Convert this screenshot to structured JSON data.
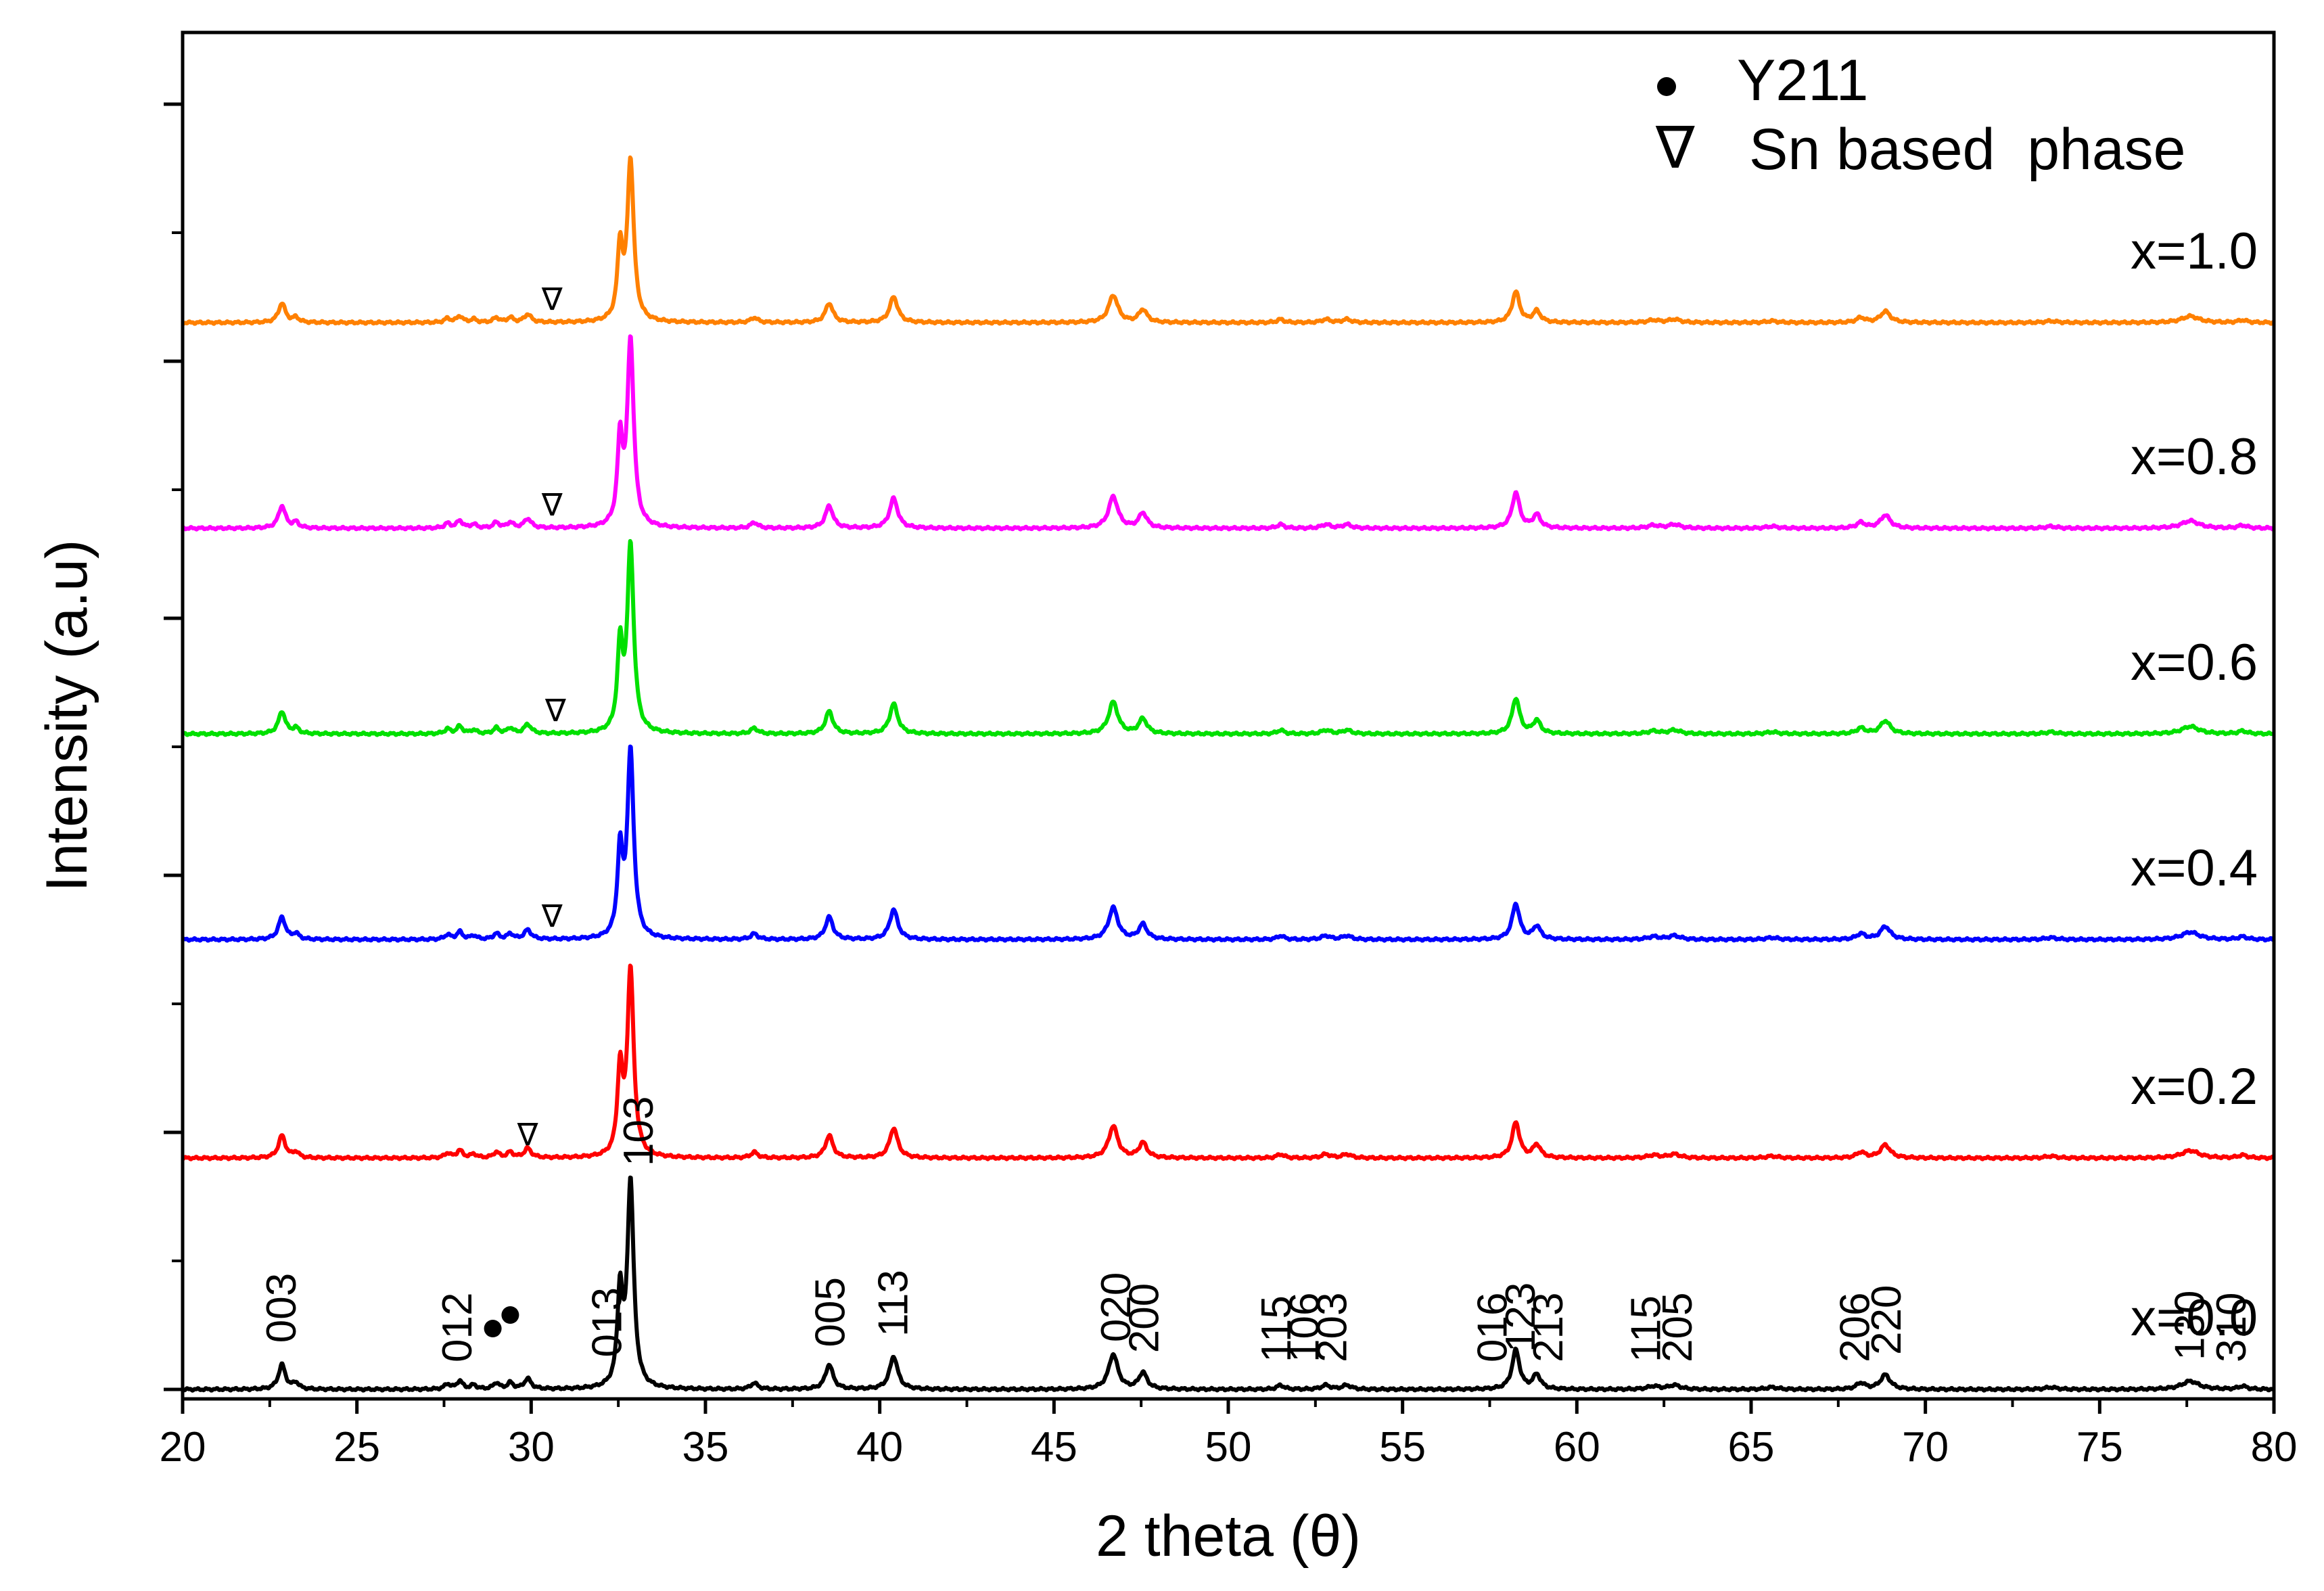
{
  "chart_data": {
    "type": "line",
    "title": "",
    "xlabel": "2 theta (θ)",
    "ylabel": "Intensity (a.u)",
    "xlim": [
      20,
      80
    ],
    "x_ticks": [
      "20",
      "25",
      "30",
      "35",
      "40",
      "45",
      "50",
      "55",
      "60",
      "65",
      "70",
      "75",
      "80"
    ],
    "y_ticks_labeled": false,
    "legend": [
      {
        "symbol": "●",
        "label": "Y211"
      },
      {
        "symbol": "∇",
        "label": "Sn based  phase"
      }
    ],
    "sn_phase_marker": "∇",
    "y211_marker": "●",
    "y211_peaks": [
      28.9,
      29.4
    ],
    "series": [
      {
        "name": "x=0.0",
        "label": "x=0.0",
        "color": "#000000",
        "baseline": 0,
        "scale": 1.6,
        "sn_marker_at": null
      },
      {
        "name": "x=0.2",
        "label": "x=0.2",
        "color": "#ff0000",
        "baseline": 1.8,
        "scale": 1.45,
        "sn_marker_at": 29.9
      },
      {
        "name": "x=0.4",
        "label": "x=0.4",
        "color": "#0000ff",
        "baseline": 3.5,
        "scale": 1.45,
        "sn_marker_at": 30.6
      },
      {
        "name": "x=0.6",
        "label": "x=0.6",
        "color": "#00e000",
        "baseline": 5.1,
        "scale": 1.45,
        "sn_marker_at": 30.7
      },
      {
        "name": "x=0.8",
        "label": "x=0.8",
        "color": "#ff00ff",
        "baseline": 6.7,
        "scale": 1.45,
        "sn_marker_at": 30.6
      },
      {
        "name": "x=1.0",
        "label": "x=1.0",
        "color": "#ff8000",
        "baseline": 8.3,
        "scale": 1.25,
        "sn_marker_at": 30.6
      }
    ],
    "peaks": [
      {
        "pos": 22.85,
        "h": 0.12,
        "w": 0.12
      },
      {
        "pos": 23.25,
        "h": 0.03,
        "w": 0.1
      },
      {
        "pos": 27.6,
        "h": 0.025,
        "w": 0.1
      },
      {
        "pos": 27.95,
        "h": 0.04,
        "w": 0.1
      },
      {
        "pos": 28.35,
        "h": 0.02,
        "w": 0.1
      },
      {
        "pos": 29.0,
        "h": 0.03,
        "w": 0.1
      },
      {
        "pos": 29.4,
        "h": 0.03,
        "w": 0.1
      },
      {
        "pos": 29.9,
        "h": 0.05,
        "w": 0.12
      },
      {
        "pos": 32.55,
        "h": 0.45,
        "w": 0.09
      },
      {
        "pos": 32.85,
        "h": 1.0,
        "w": 0.11
      },
      {
        "pos": 36.4,
        "h": 0.03,
        "w": 0.12
      },
      {
        "pos": 38.55,
        "h": 0.12,
        "w": 0.13
      },
      {
        "pos": 40.4,
        "h": 0.16,
        "w": 0.14
      },
      {
        "pos": 46.7,
        "h": 0.17,
        "w": 0.16
      },
      {
        "pos": 47.55,
        "h": 0.08,
        "w": 0.14
      },
      {
        "pos": 51.5,
        "h": 0.02,
        "w": 0.12
      },
      {
        "pos": 52.8,
        "h": 0.02,
        "w": 0.15
      },
      {
        "pos": 53.4,
        "h": 0.02,
        "w": 0.15
      },
      {
        "pos": 58.25,
        "h": 0.19,
        "w": 0.13
      },
      {
        "pos": 58.85,
        "h": 0.07,
        "w": 0.13
      },
      {
        "pos": 62.2,
        "h": 0.015,
        "w": 0.2
      },
      {
        "pos": 62.8,
        "h": 0.02,
        "w": 0.2
      },
      {
        "pos": 65.6,
        "h": 0.01,
        "w": 0.2
      },
      {
        "pos": 68.15,
        "h": 0.03,
        "w": 0.15
      },
      {
        "pos": 68.85,
        "h": 0.07,
        "w": 0.17
      },
      {
        "pos": 73.6,
        "h": 0.01,
        "w": 0.2
      },
      {
        "pos": 77.6,
        "h": 0.04,
        "w": 0.3
      },
      {
        "pos": 79.1,
        "h": 0.015,
        "w": 0.15
      }
    ],
    "hkl_labels": [
      {
        "label": "003",
        "x": 22.85
      },
      {
        "label": "012",
        "x": 27.9
      },
      {
        "label": "013",
        "x": 32.2
      },
      {
        "label": "103",
        "x": 33.1
      },
      {
        "label": "005",
        "x": 38.6
      },
      {
        "label": "113",
        "x": 40.4
      },
      {
        "label": "020",
        "x": 46.8
      },
      {
        "label": "200",
        "x": 47.6
      },
      {
        "label": "115",
        "x": 51.4
      },
      {
        "label": "106",
        "x": 52.2
      },
      {
        "label": "203",
        "x": 53.0
      },
      {
        "label": "016",
        "x": 57.6
      },
      {
        "label": "123",
        "x": 58.4
      },
      {
        "label": "213",
        "x": 59.2
      },
      {
        "label": "115",
        "x": 62.0
      },
      {
        "label": "205",
        "x": 62.9
      },
      {
        "label": "206",
        "x": 68.0
      },
      {
        "label": "220",
        "x": 68.9
      },
      {
        "label": "130",
        "x": 77.6
      },
      {
        "label": "310",
        "x": 78.8
      }
    ]
  }
}
